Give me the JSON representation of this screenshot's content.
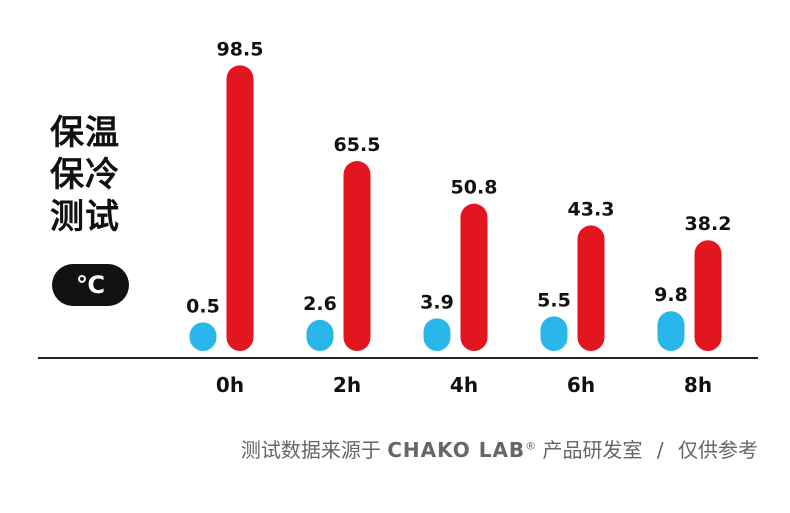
{
  "title_lines": [
    "保温",
    "保冷",
    "测试"
  ],
  "unit": "℃",
  "footer": {
    "prefix": "测试数据来源于",
    "brand": "CHAKO LAB",
    "registered": "®",
    "suffix": "产品研发室",
    "separator": "/",
    "note": "仅供参考"
  },
  "colors": {
    "cold": "#29b6ea",
    "hot": "#e3161f",
    "axis": "#222222",
    "text": "#111111"
  },
  "chart_data": {
    "type": "bar",
    "categories": [
      "0h",
      "2h",
      "4h",
      "6h",
      "8h"
    ],
    "series": [
      {
        "values": [
          0.5,
          2.6,
          3.9,
          5.5,
          9.8
        ]
      },
      {
        "values": [
          98.5,
          65.5,
          50.8,
          43.3,
          38.2
        ]
      }
    ],
    "ylim": [
      0,
      100
    ],
    "grid": false,
    "legend": "none"
  }
}
